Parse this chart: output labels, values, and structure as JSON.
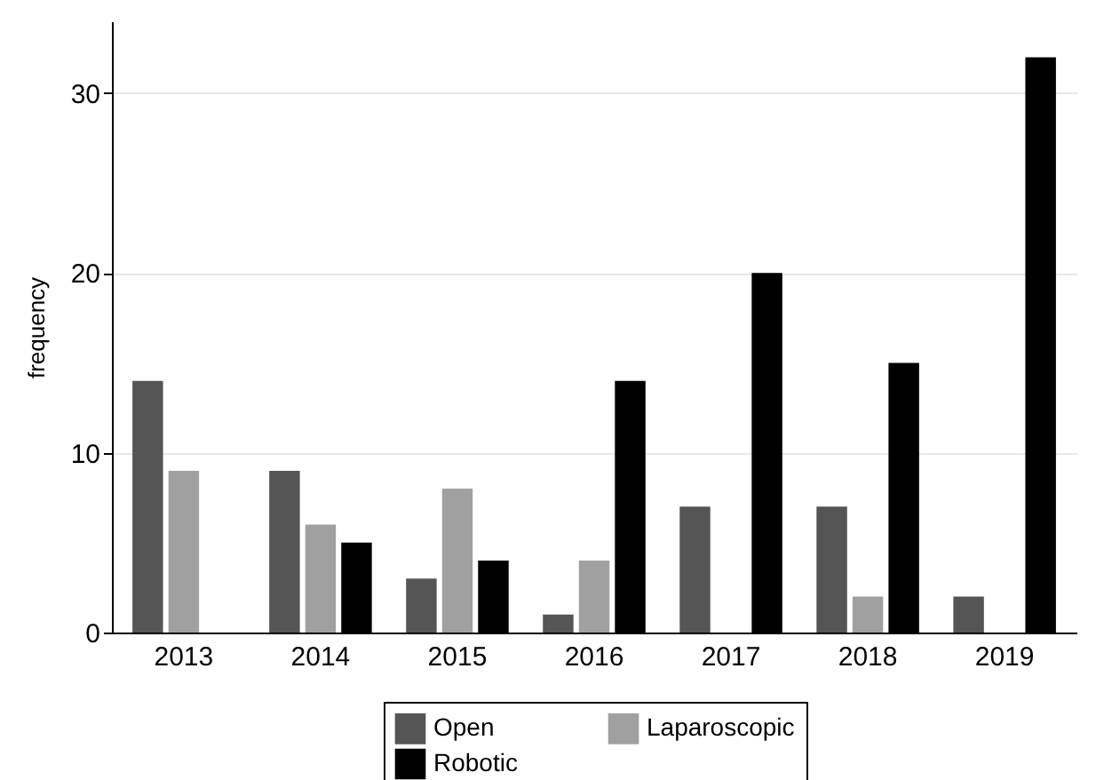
{
  "chart_data": {
    "type": "bar",
    "ylabel": "frequency",
    "categories": [
      "2013",
      "2014",
      "2015",
      "2016",
      "2017",
      "2018",
      "2019"
    ],
    "series": [
      {
        "name": "Open",
        "color": "#555555",
        "values": [
          14,
          9,
          3,
          1,
          7,
          7,
          2
        ]
      },
      {
        "name": "Laparoscopic",
        "color": "#a0a0a0",
        "values": [
          9,
          6,
          8,
          4,
          0,
          2,
          0
        ]
      },
      {
        "name": "Robotic",
        "color": "#000000",
        "values": [
          0,
          5,
          4,
          14,
          20,
          15,
          32
        ]
      }
    ],
    "ylim": [
      0,
      34
    ],
    "yticks": [
      0,
      10,
      20,
      30
    ],
    "grid": "y",
    "legend": "bottom"
  }
}
